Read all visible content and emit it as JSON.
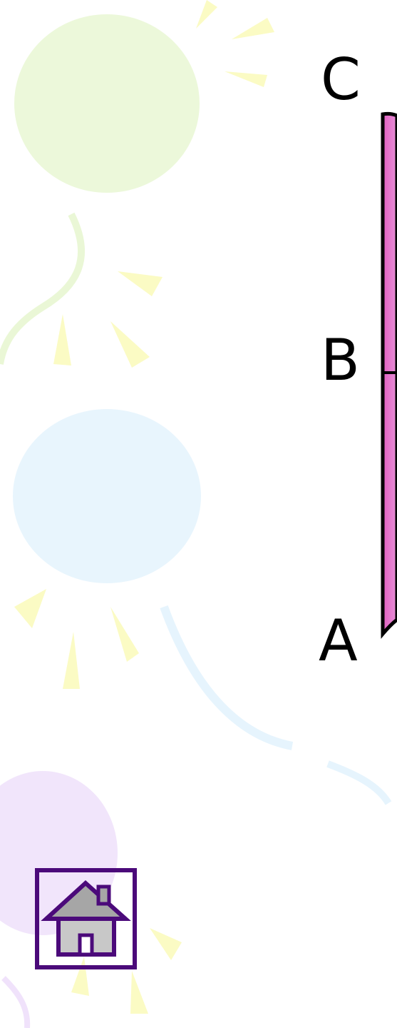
{
  "labels": [
    "C",
    "B",
    "A"
  ]
}
